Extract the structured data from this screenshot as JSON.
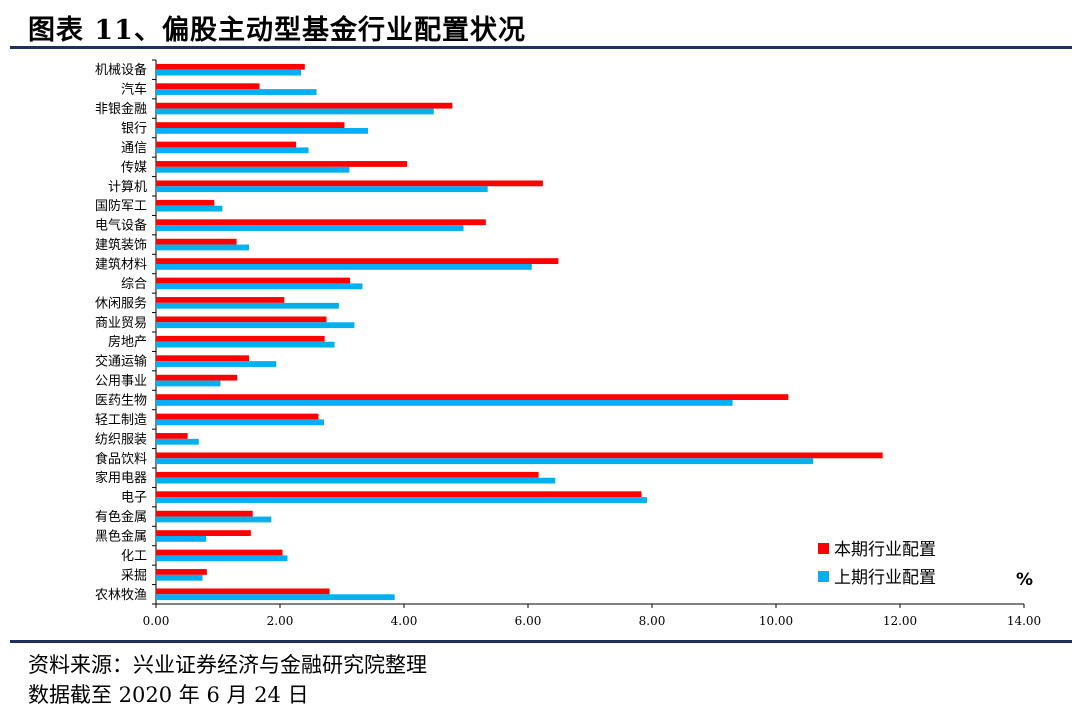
{
  "header": {
    "title": "图表 11、偏股主动型基金行业配置状况"
  },
  "footer": {
    "source": "资料来源：兴业证券经济与金融研究院整理",
    "date": "数据截至 2020 年 6 月 24 日"
  },
  "chart_data": {
    "type": "bar",
    "orientation": "horizontal",
    "title": "",
    "unit_label": "%",
    "xlim": [
      0,
      14
    ],
    "xticks": [
      "0.00",
      "2.00",
      "4.00",
      "6.00",
      "8.00",
      "10.00",
      "12.00",
      "14.00"
    ],
    "legend_position": "bottom-right",
    "categories": [
      "机械设备",
      "汽车",
      "非银金融",
      "银行",
      "通信",
      "传媒",
      "计算机",
      "国防军工",
      "电气设备",
      "建筑装饰",
      "建筑材料",
      "综合",
      "休闲服务",
      "商业贸易",
      "房地产",
      "交通运输",
      "公用事业",
      "医药生物",
      "轻工制造",
      "纺织服装",
      "食品饮料",
      "家用电器",
      "电子",
      "有色金属",
      "黑色金属",
      "化工",
      "采掘",
      "农林牧渔"
    ],
    "series": [
      {
        "name": "本期行业配置",
        "color": "#ff0000",
        "values": [
          2.4,
          1.67,
          4.78,
          3.04,
          2.26,
          4.05,
          6.24,
          0.94,
          5.32,
          1.3,
          6.49,
          3.13,
          2.07,
          2.75,
          2.72,
          1.5,
          1.31,
          10.2,
          2.62,
          0.51,
          11.72,
          6.17,
          7.83,
          1.56,
          1.53,
          2.04,
          0.82,
          2.8
        ]
      },
      {
        "name": "上期行业配置",
        "color": "#00b0f0",
        "values": [
          2.34,
          2.59,
          4.48,
          3.42,
          2.46,
          3.12,
          5.35,
          1.07,
          4.96,
          1.5,
          6.06,
          3.33,
          2.95,
          3.2,
          2.88,
          1.94,
          1.04,
          9.3,
          2.71,
          0.69,
          10.6,
          6.44,
          7.92,
          1.86,
          0.81,
          2.12,
          0.75,
          3.85
        ]
      }
    ]
  }
}
